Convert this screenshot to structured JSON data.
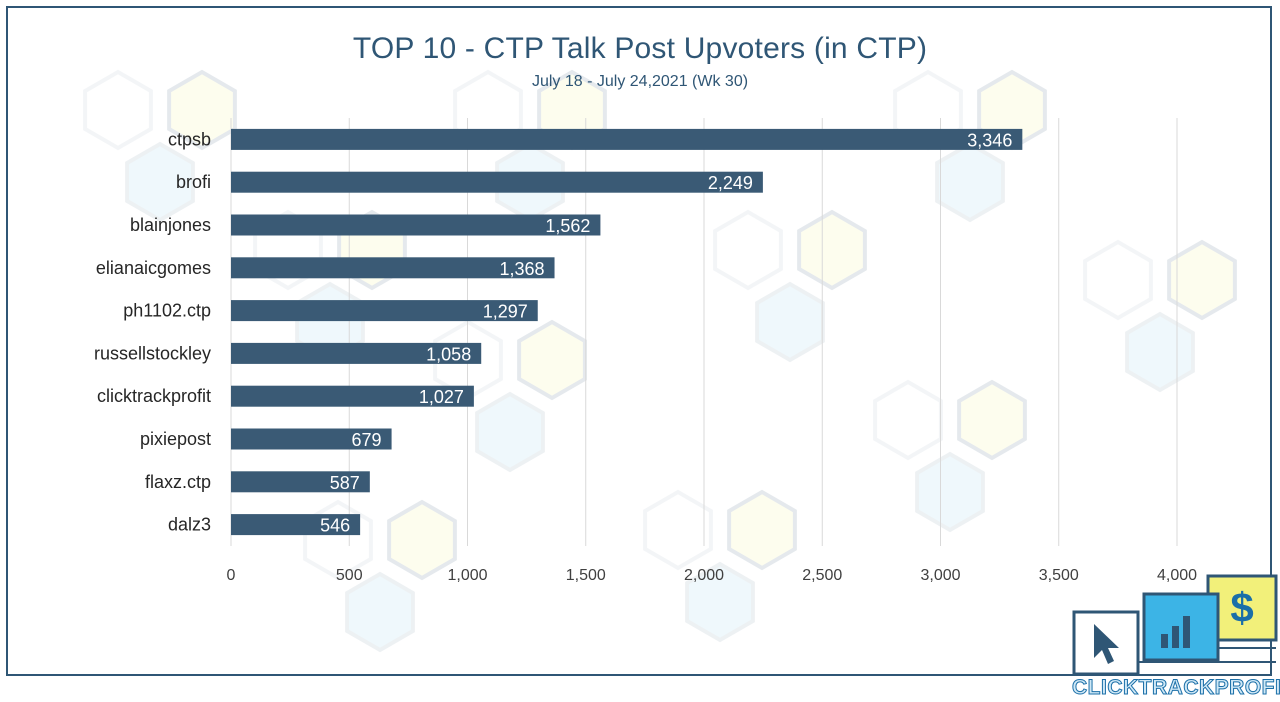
{
  "chart_data": {
    "type": "bar",
    "orientation": "horizontal",
    "title": "TOP 10 - CTP Talk Post Upvoters (in CTP)",
    "subtitle": "July 18 - July 24,2021 (Wk 30)",
    "categories": [
      "ctpsb",
      "brofi",
      "blainjones",
      "elianaicgomes",
      "ph1102.ctp",
      "russellstockley",
      "clicktrackprofit",
      "pixiepost",
      "flaxz.ctp",
      "dalz3"
    ],
    "values": [
      3346,
      2249,
      1562,
      1368,
      1297,
      1058,
      1027,
      679,
      587,
      546
    ],
    "value_labels": [
      "3,346",
      "2,249",
      "1,562",
      "1,368",
      "1,297",
      "1,058",
      "1,027",
      "679",
      "587",
      "546"
    ],
    "xticks": [
      "0",
      "500",
      "1,000",
      "1,500",
      "2,000",
      "2,500",
      "3,000",
      "3,500",
      "4,000"
    ],
    "xlim": [
      0,
      4000
    ],
    "grid": "vertical",
    "bar_color": "#3a5a75",
    "title_color": "#2f5675"
  },
  "logo": {
    "text": "CLICKTRACKPROFIT",
    "colors": {
      "dark": "#2f5675",
      "blue": "#3cb4e6",
      "yellow": "#f2f07a"
    }
  }
}
